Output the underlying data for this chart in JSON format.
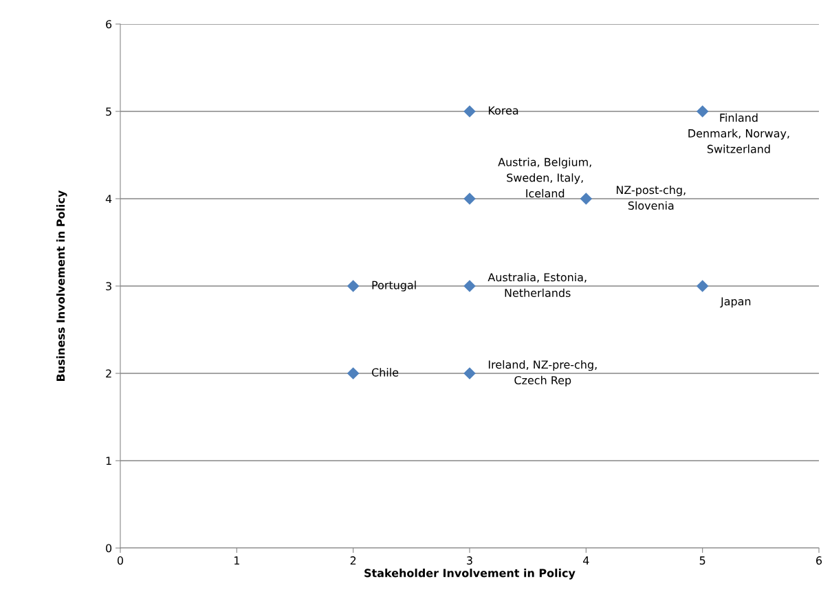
{
  "chart_data": {
    "type": "scatter",
    "xlabel": "Stakeholder Involvement in Policy",
    "ylabel": "Business Involvement in Policy",
    "series": [
      {
        "color": "#4f81bd",
        "x": [
          3,
          5,
          3,
          4,
          2,
          3,
          5,
          2,
          3
        ],
        "values": [
          5,
          5,
          4,
          4,
          3,
          3,
          3,
          2,
          2
        ]
      }
    ],
    "annotations": [
      {
        "text": "Korea",
        "x": 3,
        "y": 5
      },
      {
        "text": "Finland\nDenmark, Norway,\nSwitzerland",
        "x": 5,
        "y": 5
      },
      {
        "text": "Austria, Belgium,\nSweden, Italy,\nIceland",
        "x": 3,
        "y": 4
      },
      {
        "text": "NZ-post-chg,\nSlovenia",
        "x": 4,
        "y": 4
      },
      {
        "text": "Portugal",
        "x": 2,
        "y": 3
      },
      {
        "text": "Australia, Estonia,\nNetherlands",
        "x": 3,
        "y": 3
      },
      {
        "text": "Japan",
        "x": 5,
        "y": 3
      },
      {
        "text": "Chile",
        "x": 2,
        "y": 2
      },
      {
        "text": "Ireland, NZ-pre-chg,\nCzech Rep",
        "x": 3,
        "y": 2
      }
    ],
    "xlim": [
      0,
      6
    ],
    "ylim": [
      0,
      6
    ],
    "xticks": [
      0,
      1,
      2,
      3,
      4,
      5,
      6
    ],
    "yticks": [
      0,
      1,
      2,
      3,
      4,
      5,
      6
    ],
    "grid": "y",
    "marker": "diamond",
    "legend": false
  }
}
